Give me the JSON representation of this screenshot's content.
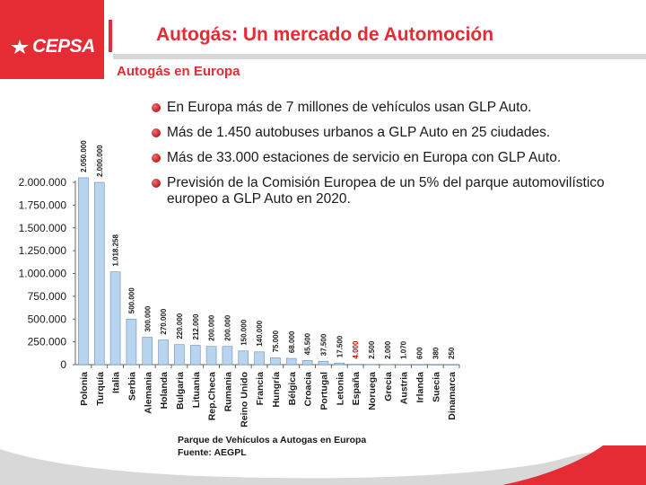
{
  "brand": {
    "logo_text": "CEPSA",
    "accent_color": "#e52b33",
    "bar_color": "#b8d4ee"
  },
  "header": {
    "title": "Autogás: Un mercado de Automoción",
    "subtitle": "Autogás en Europa"
  },
  "bullets": [
    "En Europa más de 7 millones de vehículos usan GLP Auto.",
    "Más de 1.450 autobuses urbanos a GLP Auto en 25 ciudades.",
    "Más de 33.000 estaciones de servicio en Europa con GLP Auto.",
    "Previsión de la Comisión Europea de un 5% del parque automovilístico europeo a GLP Auto en 2020."
  ],
  "chart_data": {
    "type": "bar",
    "title": "Parque de Vehículos a Autogas en Europa",
    "source": "Fuente: AEGPL",
    "categories": [
      "Polonia",
      "Turquía",
      "Italia",
      "Serbia",
      "Alemania",
      "Holanda",
      "Bulgaria",
      "Lituania",
      "Rep.Checa",
      "Rumania",
      "Reino Unido",
      "Francia",
      "Hungría",
      "Bélgica",
      "Croacia",
      "Portugal",
      "Letonia",
      "España",
      "Noruega",
      "Grecia",
      "Austria",
      "Irlanda",
      "Suecia",
      "Dinamarca"
    ],
    "values": [
      2050000,
      2000000,
      1018258,
      500000,
      300000,
      270000,
      220000,
      212000,
      200000,
      200000,
      150000,
      140000,
      75000,
      68000,
      45500,
      37500,
      17500,
      4000,
      2500,
      2000,
      1070,
      600,
      380,
      250
    ],
    "value_labels": [
      "2.050.000",
      "2.000.000",
      "1.018.258",
      "500.000",
      "300.000",
      "270.000",
      "220.000",
      "212.000",
      "200.000",
      "200.000",
      "150.000",
      "140.000",
      "75.000",
      "68.000",
      "45.500",
      "37.500",
      "17.500",
      "4.000",
      "2.500",
      "2.000",
      "1.070",
      "600",
      "380",
      "250"
    ],
    "highlight_category": "España",
    "highlight_color": "#cc0000",
    "yticks": [
      0,
      250000,
      500000,
      750000,
      1000000,
      1250000,
      1500000,
      1750000,
      2000000
    ],
    "ytick_labels": [
      "0",
      "250.000",
      "500.000",
      "750.000",
      "1.000.000",
      "1.250.000",
      "1.500.000",
      "1.750.000",
      "2.000.000"
    ],
    "ylim": [
      0,
      2000000
    ],
    "xlabel": "",
    "ylabel": ""
  }
}
